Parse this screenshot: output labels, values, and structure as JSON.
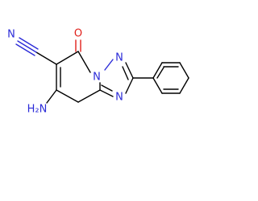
{
  "atoms": [
    {
      "label": "N"
    },
    {
      "label": "O"
    },
    {
      "label": "N"
    },
    {
      "label": "N"
    },
    {
      "label": "N"
    },
    {
      "label": "H₂N"
    }
  ]
}
